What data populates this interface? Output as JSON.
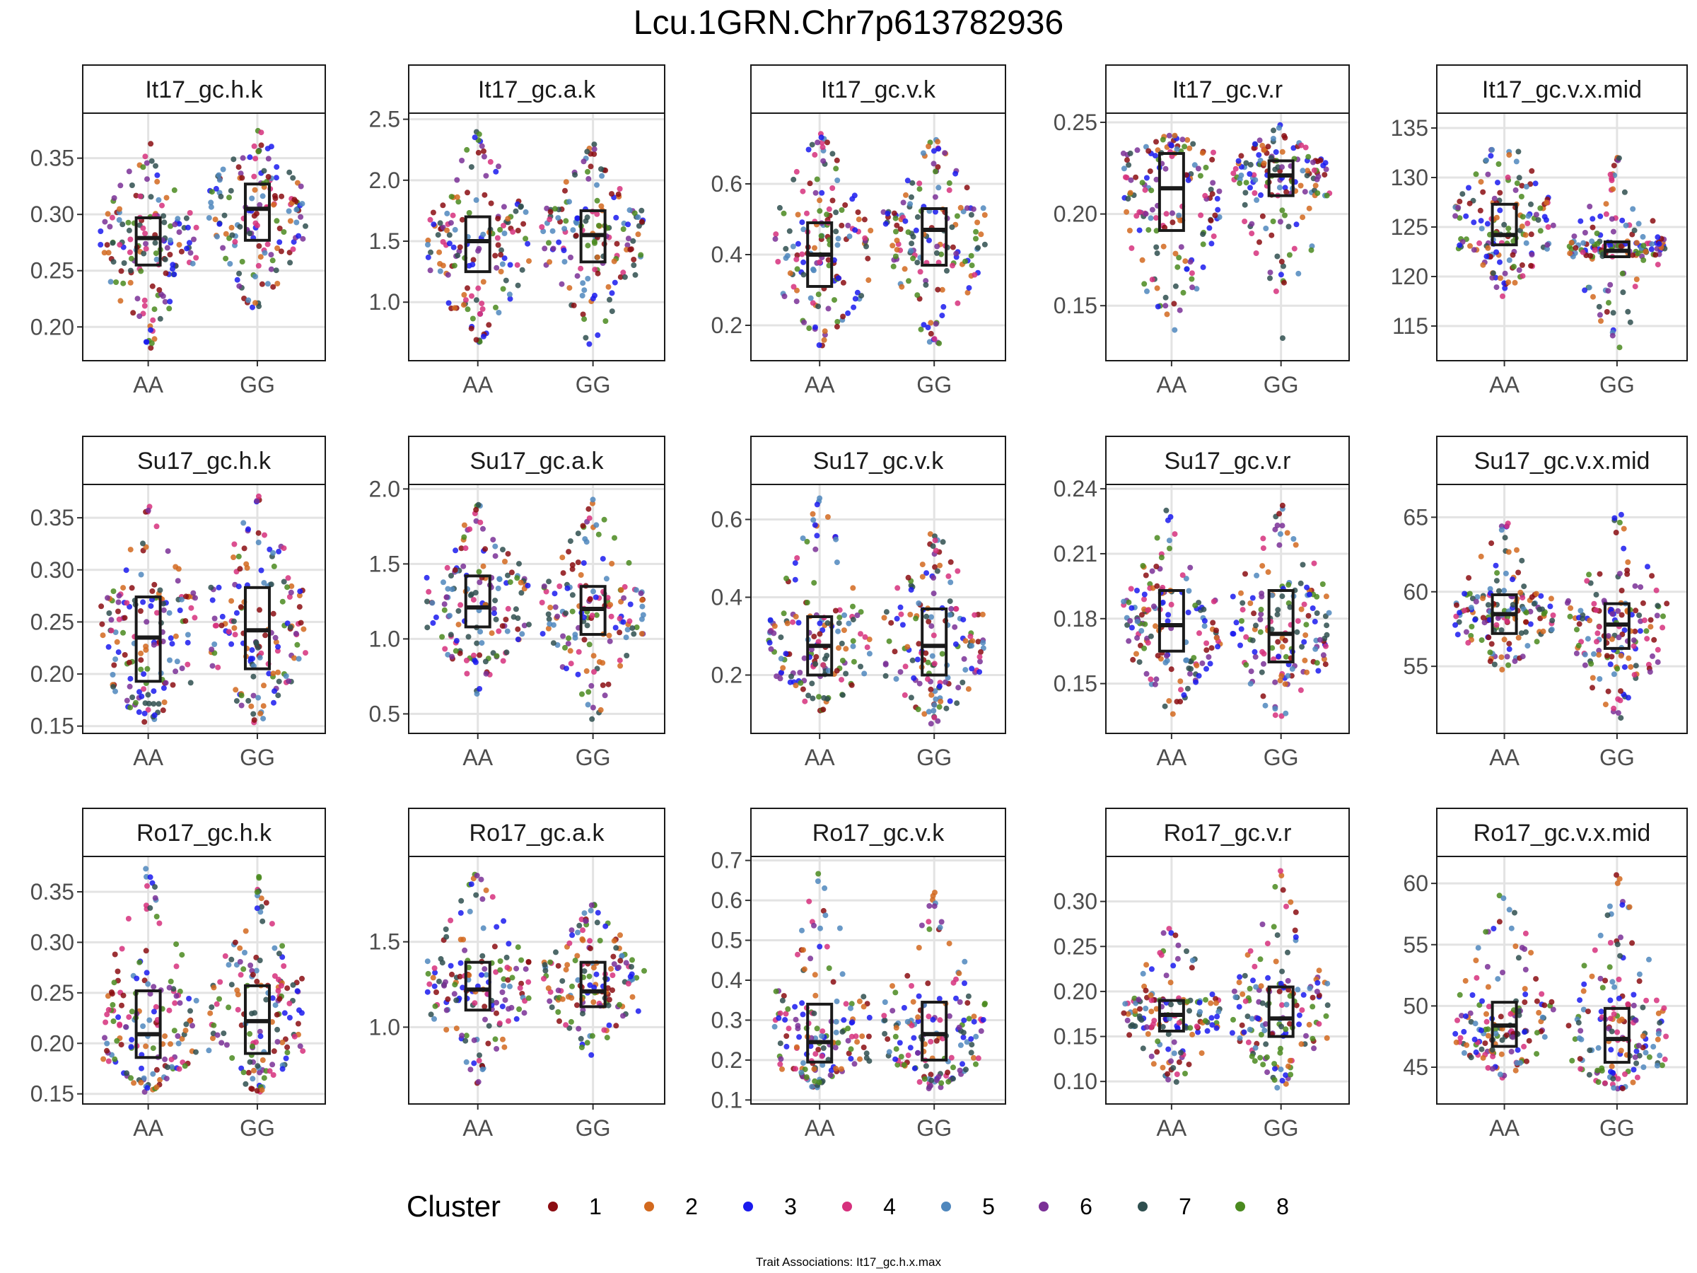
{
  "title": "Lcu.1GRN.Chr7p613782936",
  "caption": "Trait Associations: It17_gc.h.x.max",
  "legend": {
    "title": "Cluster",
    "items": [
      {
        "label": "1",
        "color": "#8b0d12"
      },
      {
        "label": "2",
        "color": "#d2691e"
      },
      {
        "label": "3",
        "color": "#1a1aee"
      },
      {
        "label": "4",
        "color": "#d6307d"
      },
      {
        "label": "5",
        "color": "#4f87bd"
      },
      {
        "label": "6",
        "color": "#7a3096"
      },
      {
        "label": "7",
        "color": "#2f4f4f"
      },
      {
        "label": "8",
        "color": "#4a8a1f"
      }
    ]
  },
  "chart_data": [
    {
      "type": "box-beeswarm",
      "title": "It17_gc.h.k",
      "categories": [
        "AA",
        "GG"
      ],
      "ylim": [
        0.17,
        0.39
      ],
      "ticks": [
        0.2,
        0.25,
        0.3,
        0.35
      ],
      "tick_labels": [
        "0.20",
        "0.25",
        "0.30",
        "0.35"
      ],
      "boxes": [
        {
          "q1": 0.255,
          "median": 0.279,
          "q3": 0.297,
          "min": 0.178,
          "max": 0.367
        },
        {
          "q1": 0.277,
          "median": 0.305,
          "q3": 0.327,
          "min": 0.205,
          "max": 0.378
        }
      ]
    },
    {
      "type": "box-beeswarm",
      "title": "It17_gc.a.k",
      "categories": [
        "AA",
        "GG"
      ],
      "ylim": [
        0.52,
        2.55
      ],
      "ticks": [
        1.0,
        1.5,
        2.0,
        2.5
      ],
      "tick_labels": [
        "1.0",
        "1.5",
        "2.0",
        "2.5"
      ],
      "boxes": [
        {
          "q1": 1.25,
          "median": 1.5,
          "q3": 1.7,
          "min": 0.62,
          "max": 2.42
        },
        {
          "q1": 1.33,
          "median": 1.55,
          "q3": 1.75,
          "min": 0.6,
          "max": 2.3
        }
      ]
    },
    {
      "type": "box-beeswarm",
      "title": "It17_gc.v.k",
      "categories": [
        "AA",
        "GG"
      ],
      "ylim": [
        0.1,
        0.8
      ],
      "ticks": [
        0.2,
        0.4,
        0.6
      ],
      "tick_labels": [
        "0.2",
        "0.4",
        "0.6"
      ],
      "boxes": [
        {
          "q1": 0.31,
          "median": 0.4,
          "q3": 0.49,
          "min": 0.13,
          "max": 0.76
        },
        {
          "q1": 0.37,
          "median": 0.47,
          "q3": 0.53,
          "min": 0.12,
          "max": 0.76
        }
      ]
    },
    {
      "type": "box-beeswarm",
      "title": "It17_gc.v.r",
      "categories": [
        "AA",
        "GG"
      ],
      "ylim": [
        0.12,
        0.255
      ],
      "ticks": [
        0.15,
        0.2,
        0.25
      ],
      "tick_labels": [
        "0.15",
        "0.20",
        "0.25"
      ],
      "boxes": [
        {
          "q1": 0.191,
          "median": 0.214,
          "q3": 0.233,
          "min": 0.123,
          "max": 0.244
        },
        {
          "q1": 0.21,
          "median": 0.221,
          "q3": 0.229,
          "min": 0.128,
          "max": 0.249
        }
      ]
    },
    {
      "type": "box-beeswarm",
      "title": "It17_gc.v.x.mid",
      "categories": [
        "AA",
        "GG"
      ],
      "ylim": [
        111.5,
        136.5
      ],
      "ticks": [
        115,
        120,
        125,
        130,
        135
      ],
      "tick_labels": [
        "115",
        "120",
        "125",
        "130",
        "135"
      ],
      "boxes": [
        {
          "q1": 123.2,
          "median": 124.2,
          "q3": 127.3,
          "min": 117.8,
          "max": 134.8
        },
        {
          "q1": 122.0,
          "median": 122.6,
          "q3": 123.5,
          "min": 112.3,
          "max": 132.2
        }
      ]
    },
    {
      "type": "box-beeswarm",
      "title": "Su17_gc.h.k",
      "categories": [
        "AA",
        "GG"
      ],
      "ylim": [
        0.143,
        0.382
      ],
      "ticks": [
        0.15,
        0.2,
        0.25,
        0.3,
        0.35
      ],
      "tick_labels": [
        "0.15",
        "0.20",
        "0.25",
        "0.30",
        "0.35"
      ],
      "boxes": [
        {
          "q1": 0.193,
          "median": 0.235,
          "q3": 0.274,
          "min": 0.15,
          "max": 0.362
        },
        {
          "q1": 0.205,
          "median": 0.242,
          "q3": 0.283,
          "min": 0.15,
          "max": 0.372
        }
      ]
    },
    {
      "type": "box-beeswarm",
      "title": "Su17_gc.a.k",
      "categories": [
        "AA",
        "GG"
      ],
      "ylim": [
        0.37,
        2.03
      ],
      "ticks": [
        0.5,
        1.0,
        1.5,
        2.0
      ],
      "tick_labels": [
        "0.5",
        "1.0",
        "1.5",
        "2.0"
      ],
      "boxes": [
        {
          "q1": 1.08,
          "median": 1.21,
          "q3": 1.42,
          "min": 0.62,
          "max": 1.9
        },
        {
          "q1": 1.03,
          "median": 1.2,
          "q3": 1.35,
          "min": 0.43,
          "max": 1.93
        }
      ]
    },
    {
      "type": "box-beeswarm",
      "title": "Su17_gc.v.k",
      "categories": [
        "AA",
        "GG"
      ],
      "ylim": [
        0.05,
        0.69
      ],
      "ticks": [
        0.2,
        0.4,
        0.6
      ],
      "tick_labels": [
        "0.2",
        "0.4",
        "0.6"
      ],
      "boxes": [
        {
          "q1": 0.2,
          "median": 0.275,
          "q3": 0.35,
          "min": 0.1,
          "max": 0.66
        },
        {
          "q1": 0.2,
          "median": 0.275,
          "q3": 0.37,
          "min": 0.07,
          "max": 0.58
        }
      ]
    },
    {
      "type": "box-beeswarm",
      "title": "Su17_gc.v.r",
      "categories": [
        "AA",
        "GG"
      ],
      "ylim": [
        0.127,
        0.242
      ],
      "ticks": [
        0.15,
        0.18,
        0.21,
        0.24
      ],
      "tick_labels": [
        "0.15",
        "0.18",
        "0.21",
        "0.24"
      ],
      "boxes": [
        {
          "q1": 0.165,
          "median": 0.177,
          "q3": 0.193,
          "min": 0.135,
          "max": 0.235
        },
        {
          "q1": 0.16,
          "median": 0.173,
          "q3": 0.193,
          "min": 0.13,
          "max": 0.233
        }
      ]
    },
    {
      "type": "box-beeswarm",
      "title": "Su17_gc.v.x.mid",
      "categories": [
        "AA",
        "GG"
      ],
      "ylim": [
        50.5,
        67.2
      ],
      "ticks": [
        55,
        60,
        65
      ],
      "tick_labels": [
        "55",
        "60",
        "65"
      ],
      "boxes": [
        {
          "q1": 57.2,
          "median": 58.5,
          "q3": 59.8,
          "min": 54.6,
          "max": 65.0
        },
        {
          "q1": 56.2,
          "median": 57.8,
          "q3": 59.2,
          "min": 51.0,
          "max": 66.0
        }
      ]
    },
    {
      "type": "box-beeswarm",
      "title": "Ro17_gc.h.k",
      "categories": [
        "AA",
        "GG"
      ],
      "ylim": [
        0.14,
        0.385
      ],
      "ticks": [
        0.15,
        0.2,
        0.25,
        0.3,
        0.35
      ],
      "tick_labels": [
        "0.15",
        "0.20",
        "0.25",
        "0.30",
        "0.35"
      ],
      "boxes": [
        {
          "q1": 0.186,
          "median": 0.209,
          "q3": 0.252,
          "min": 0.15,
          "max": 0.375
        },
        {
          "q1": 0.19,
          "median": 0.222,
          "q3": 0.257,
          "min": 0.15,
          "max": 0.367
        }
      ]
    },
    {
      "type": "box-beeswarm",
      "title": "Ro17_gc.a.k",
      "categories": [
        "AA",
        "GG"
      ],
      "ylim": [
        0.55,
        2.0
      ],
      "ticks": [
        1.0,
        1.5
      ],
      "tick_labels": [
        "1.0",
        "1.5"
      ],
      "boxes": [
        {
          "q1": 1.1,
          "median": 1.22,
          "q3": 1.38,
          "min": 0.63,
          "max": 1.93
        },
        {
          "q1": 1.12,
          "median": 1.21,
          "q3": 1.38,
          "min": 0.8,
          "max": 1.73
        }
      ]
    },
    {
      "type": "box-beeswarm",
      "title": "Ro17_gc.v.k",
      "categories": [
        "AA",
        "GG"
      ],
      "ylim": [
        0.09,
        0.71
      ],
      "ticks": [
        0.1,
        0.2,
        0.3,
        0.4,
        0.5,
        0.6,
        0.7
      ],
      "tick_labels": [
        "0.1",
        "0.2",
        "0.3",
        "0.4",
        "0.5",
        "0.6",
        "0.7"
      ],
      "boxes": [
        {
          "q1": 0.195,
          "median": 0.245,
          "q3": 0.34,
          "min": 0.12,
          "max": 0.67
        },
        {
          "q1": 0.2,
          "median": 0.265,
          "q3": 0.345,
          "min": 0.12,
          "max": 0.63
        }
      ]
    },
    {
      "type": "box-beeswarm",
      "title": "Ro17_gc.v.r",
      "categories": [
        "AA",
        "GG"
      ],
      "ylim": [
        0.075,
        0.35
      ],
      "ticks": [
        0.1,
        0.15,
        0.2,
        0.25,
        0.3
      ],
      "tick_labels": [
        "0.10",
        "0.15",
        "0.20",
        "0.25",
        "0.30"
      ],
      "boxes": [
        {
          "q1": 0.156,
          "median": 0.174,
          "q3": 0.19,
          "min": 0.09,
          "max": 0.28
        },
        {
          "q1": 0.15,
          "median": 0.17,
          "q3": 0.205,
          "min": 0.09,
          "max": 0.335
        }
      ]
    },
    {
      "type": "box-beeswarm",
      "title": "Ro17_gc.v.x.mid",
      "categories": [
        "AA",
        "GG"
      ],
      "ylim": [
        42.0,
        62.2
      ],
      "ticks": [
        45,
        50,
        55,
        60
      ],
      "tick_labels": [
        "45",
        "50",
        "55",
        "60"
      ],
      "boxes": [
        {
          "q1": 46.7,
          "median": 48.4,
          "q3": 50.3,
          "min": 44.0,
          "max": 60.5
        },
        {
          "q1": 45.4,
          "median": 47.3,
          "q3": 49.8,
          "min": 42.8,
          "max": 61.0
        }
      ]
    }
  ]
}
